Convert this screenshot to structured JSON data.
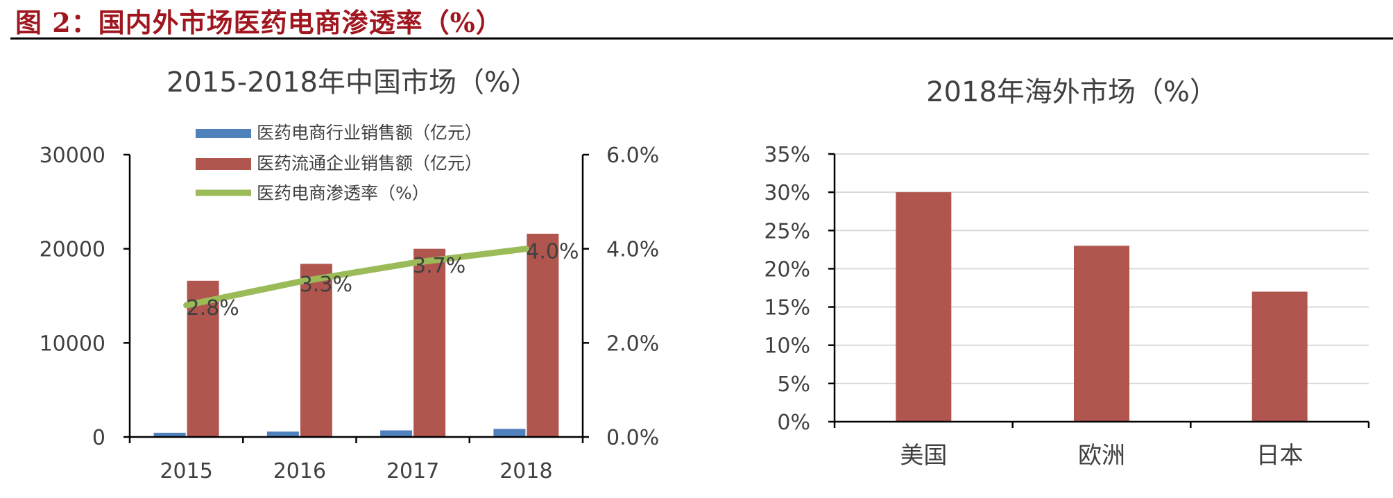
{
  "figure": {
    "title": "图 2：国内外市场医药电商渗透率（%）"
  },
  "chart_data": [
    {
      "type": "bar",
      "title": "2015-2018年中国市场（%）",
      "categories": [
        "2015",
        "2016",
        "2017",
        "2018"
      ],
      "series": [
        {
          "name": "医药电商行业销售额（亿元）",
          "axis": "left",
          "kind": "bar",
          "color": "#4f81bd",
          "values": [
            450,
            570,
            700,
            860
          ]
        },
        {
          "name": "医药流通企业销售额（亿元）",
          "axis": "left",
          "kind": "bar",
          "color": "#b0564f",
          "values": [
            16600,
            18400,
            20000,
            21600
          ]
        },
        {
          "name": "医药电商渗透率（%）",
          "axis": "right",
          "kind": "line",
          "color": "#9bbb59",
          "values": [
            2.8,
            3.3,
            3.7,
            4.0
          ],
          "labels": [
            "2.8%",
            "3.3%",
            "3.7%",
            "4.0%"
          ]
        }
      ],
      "ylim_left": [
        0,
        30000
      ],
      "yticks_left": [
        "0",
        "10000",
        "20000",
        "30000"
      ],
      "ylim_right": [
        0,
        6
      ],
      "yticks_right": [
        "0.0%",
        "2.0%",
        "4.0%",
        "6.0%"
      ],
      "legend": "top",
      "grid": false
    },
    {
      "type": "bar",
      "title": "2018年海外市场（%）",
      "categories": [
        "美国",
        "欧洲",
        "日本"
      ],
      "series": [
        {
          "name": "",
          "color": "#b0564f",
          "values": [
            30,
            23,
            17
          ]
        }
      ],
      "ylim": [
        0,
        35
      ],
      "yticks": [
        "0%",
        "5%",
        "10%",
        "15%",
        "20%",
        "25%",
        "30%",
        "35%"
      ],
      "grid": true
    }
  ]
}
